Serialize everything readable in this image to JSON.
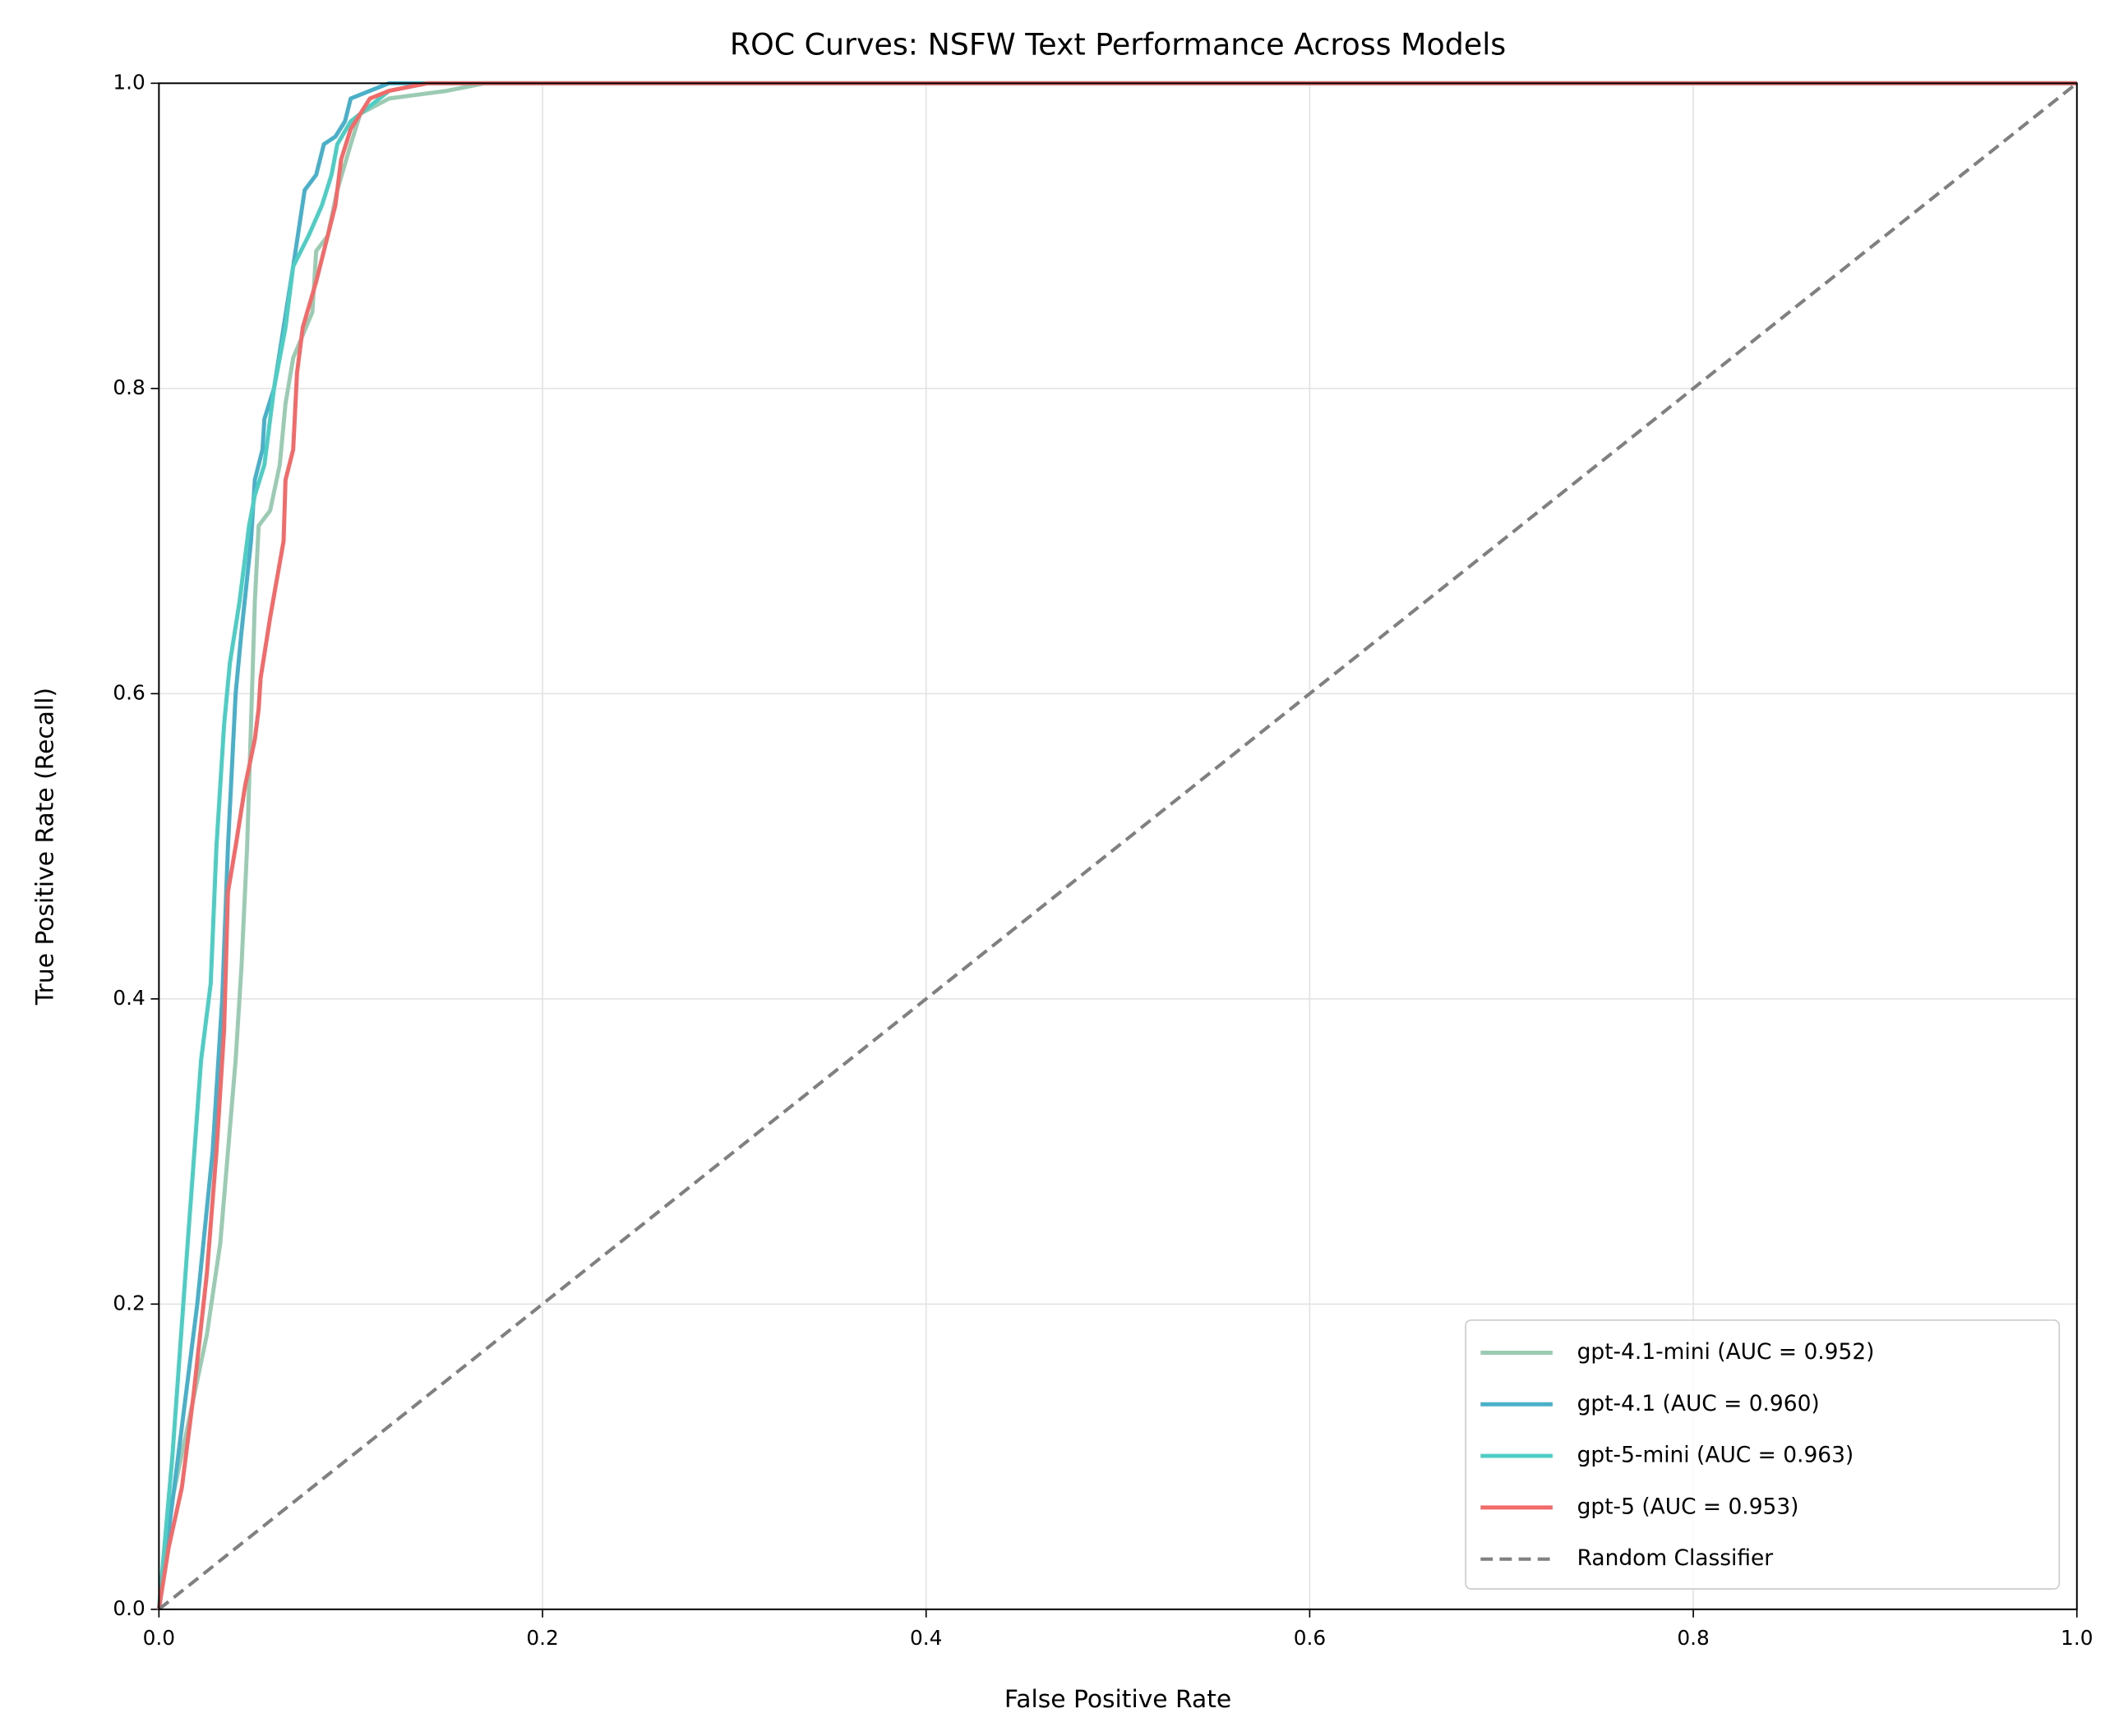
{
  "chart_data": {
    "type": "line",
    "title": "ROC Curves: NSFW Text Performance Across Models",
    "x_label": "False Positive Rate",
    "y_label": "True Positive Rate (Recall)",
    "xlim": [
      0,
      1
    ],
    "ylim": [
      0,
      1
    ],
    "xticks": [
      {
        "value": 0,
        "label": "0.0"
      },
      0.2,
      0.4,
      0.6,
      0.8,
      {
        "value": 1,
        "label": "1.0"
      }
    ],
    "yticks": [
      {
        "value": 0,
        "label": "0.0"
      },
      0.2,
      0.4,
      0.6,
      0.8,
      {
        "value": 1,
        "label": "1.0"
      }
    ],
    "grid": true,
    "legend": "lower right",
    "series": [
      {
        "name": "gpt-4.1-mini (AUC = 0.952)",
        "color": "#9ccbb4",
        "x": [
          0,
          0.005,
          0.015,
          0.025,
          0.032,
          0.036,
          0.04,
          0.043,
          0.046,
          0.048,
          0.05,
          0.052,
          0.058,
          0.063,
          0.066,
          0.07,
          0.08,
          0.082,
          0.088,
          0.093,
          0.1,
          0.105,
          0.12,
          0.15,
          0.17,
          1
        ],
        "values": [
          0,
          0.06,
          0.12,
          0.18,
          0.24,
          0.3,
          0.36,
          0.42,
          0.5,
          0.58,
          0.66,
          0.71,
          0.72,
          0.75,
          0.79,
          0.82,
          0.85,
          0.89,
          0.9,
          0.93,
          0.96,
          0.98,
          0.99,
          0.995,
          1,
          1
        ]
      },
      {
        "name": "gpt-4.1 (AUC = 0.960)",
        "color": "#4ab0c9",
        "x": [
          0,
          0.01,
          0.02,
          0.028,
          0.033,
          0.036,
          0.04,
          0.043,
          0.048,
          0.05,
          0.054,
          0.055,
          0.06,
          0.065,
          0.07,
          0.076,
          0.082,
          0.086,
          0.092,
          0.097,
          0.1,
          0.11,
          0.12,
          1
        ],
        "values": [
          0,
          0.1,
          0.2,
          0.3,
          0.4,
          0.5,
          0.6,
          0.64,
          0.7,
          0.74,
          0.76,
          0.78,
          0.8,
          0.84,
          0.88,
          0.93,
          0.94,
          0.96,
          0.965,
          0.975,
          0.99,
          0.995,
          1,
          1
        ]
      },
      {
        "name": "gpt-5-mini (AUC = 0.963)",
        "color": "#4ecdc4",
        "x": [
          0,
          0.007,
          0.015,
          0.022,
          0.027,
          0.03,
          0.034,
          0.037,
          0.042,
          0.047,
          0.05,
          0.055,
          0.06,
          0.066,
          0.07,
          0.078,
          0.085,
          0.09,
          0.093,
          0.1,
          0.11,
          0.12,
          0.14,
          1
        ],
        "values": [
          0,
          0.1,
          0.24,
          0.36,
          0.41,
          0.5,
          0.58,
          0.62,
          0.66,
          0.71,
          0.73,
          0.75,
          0.8,
          0.84,
          0.88,
          0.9,
          0.92,
          0.94,
          0.96,
          0.975,
          0.985,
          0.995,
          1,
          1
        ]
      },
      {
        "name": "gpt-5 (AUC = 0.953)",
        "color": "#f26b6b",
        "x": [
          0,
          0.005,
          0.012,
          0.018,
          0.025,
          0.03,
          0.034,
          0.036,
          0.04,
          0.045,
          0.05,
          0.052,
          0.053,
          0.058,
          0.065,
          0.066,
          0.07,
          0.072,
          0.075,
          0.082,
          0.088,
          0.092,
          0.095,
          0.1,
          0.11,
          0.12,
          0.14,
          1
        ],
        "values": [
          0,
          0.04,
          0.08,
          0.14,
          0.22,
          0.3,
          0.38,
          0.47,
          0.5,
          0.54,
          0.57,
          0.59,
          0.61,
          0.65,
          0.7,
          0.74,
          0.76,
          0.81,
          0.84,
          0.87,
          0.9,
          0.92,
          0.95,
          0.97,
          0.99,
          0.995,
          1,
          1
        ]
      },
      {
        "name": "Random Classifier",
        "color": "#808080",
        "linestyle": "dashed",
        "x": [
          0,
          1
        ],
        "values": [
          0,
          1
        ]
      }
    ]
  }
}
